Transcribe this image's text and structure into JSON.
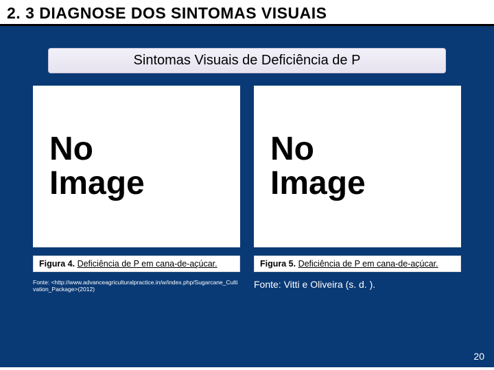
{
  "colors": {
    "slide_background": "#0a3a75",
    "header_background": "#ffffff",
    "header_underline": "#000000",
    "subtitle_bg_top": "#f2f0f8",
    "subtitle_bg_bottom": "#e6e3f0",
    "subtitle_border": "#c8c4d8",
    "panel_background": "#ffffff",
    "text_black": "#000000",
    "text_white": "#ffffff"
  },
  "header": {
    "title": "2. 3 DIAGNOSE DOS SINTOMAS VISUAIS"
  },
  "subtitle": "Sintomas Visuais de Deficiência de P",
  "figures": {
    "left": {
      "placeholder_line1": "No",
      "placeholder_line2": "Image",
      "caption_label": "Figura 4.",
      "caption_desc": "Deficiência de P em cana-de-açúcar.",
      "source": "Fonte:\n<http://www.advanceagriculturalpractice.in/w/index.php/Sugarcane_Cultivation_Package>(2012)"
    },
    "right": {
      "placeholder_line1": "No",
      "placeholder_line2": "Image",
      "caption_label": "Figura 5.",
      "caption_desc": "Deficiência de P em cana-de-açúcar.",
      "source": "Fonte: Vitti e Oliveira (s. d. )."
    }
  },
  "page_number": "20"
}
